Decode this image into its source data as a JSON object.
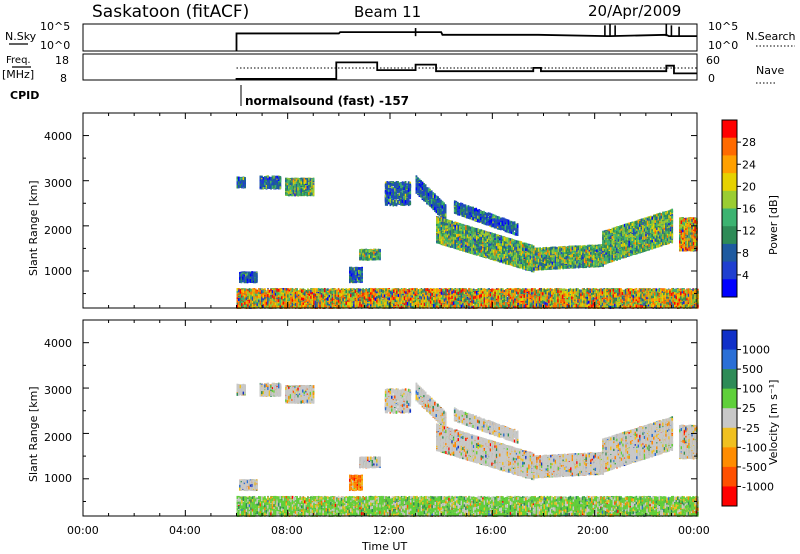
{
  "header": {
    "station": "Saskatoon (fitACF)",
    "beam": "Beam 11",
    "date": "20/Apr/2009"
  },
  "top_panels": {
    "nsky_label": "N.Sky",
    "nsky_ticks": [
      "10^5",
      "10^0"
    ],
    "nsearch_label": "N.Search",
    "nsearch_ticks": [
      "10^5",
      "10^0"
    ],
    "freq_label_1": "Freq.",
    "freq_label_2": "[MHz]",
    "freq_ticks": [
      "18",
      "8"
    ],
    "nave_label": "Nave",
    "nave_ticks": [
      "60",
      "0"
    ],
    "cpid_label": "CPID",
    "cpid_text": "normalsound (fast) -157"
  },
  "x_axis": {
    "tick_labels": [
      "00:00",
      "04:00",
      "08:00",
      "12:00",
      "16:00",
      "20:00",
      "00:00"
    ],
    "title": "Time UT"
  },
  "power_panel": {
    "ylabel": "Slant Range [km]",
    "yticks": [
      "4000",
      "3000",
      "2000",
      "1000"
    ],
    "colorbar_title": "Power [dB]",
    "colorbar_labels": [
      "28",
      "24",
      "20",
      "16",
      "12",
      "8",
      "4"
    ],
    "colors": [
      "#ff0000",
      "#ff6a00",
      "#ffa000",
      "#e6d200",
      "#9acd32",
      "#3cb371",
      "#2e8b57",
      "#1e5aa0",
      "#1f3fd0",
      "#0000ff"
    ]
  },
  "velocity_panel": {
    "ylabel": "Slant Range [km]",
    "yticks": [
      "4000",
      "3000",
      "2000",
      "1000"
    ],
    "colorbar_title": "Velocity [m s⁻¹]",
    "colorbar_labels": [
      "1000",
      "500",
      "100",
      "25",
      "-25",
      "-100",
      "-500",
      "-1000"
    ],
    "colors": [
      "#1030c8",
      "#2a6fd6",
      "#2e8b57",
      "#5fd03a",
      "#c8c8c8",
      "#f0c020",
      "#ff8c00",
      "#ff5000",
      "#ff0000"
    ]
  },
  "chart_data": [
    {
      "type": "line",
      "name": "N.Sky / N.Search",
      "x_range_hours": [
        0,
        24
      ],
      "data_start_hour": 6.0,
      "x": [
        6.0,
        10.0,
        10.05,
        14.0,
        14.05,
        17.8,
        20.5,
        20.6,
        22.8,
        22.9,
        24.0
      ],
      "y_level": [
        0.35,
        0.35,
        0.3,
        0.3,
        0.4,
        0.4,
        0.45,
        0.45,
        0.4,
        0.45,
        0.45
      ]
    },
    {
      "type": "line",
      "name": "Freq",
      "x_range_hours": [
        0,
        24
      ],
      "ylim_mhz": [
        8,
        18
      ],
      "x": [
        6.0,
        9.9,
        9.9,
        11.5,
        11.5,
        13.0,
        13.0,
        13.8,
        13.8,
        17.6,
        17.6,
        17.9,
        17.9,
        22.8,
        22.8,
        23.1,
        23.1,
        24.0
      ],
      "y": [
        8.5,
        8.5,
        16.0,
        16.0,
        12.5,
        12.5,
        15.0,
        15.0,
        12.0,
        12.0,
        13.5,
        13.5,
        12.0,
        12.0,
        14.5,
        14.5,
        11.0,
        11.0
      ]
    },
    {
      "type": "heatmap",
      "name": "Power",
      "x_range_hours": [
        0,
        24
      ],
      "y_range_km": [
        180,
        4500
      ],
      "clim_db": [
        0,
        30
      ]
    },
    {
      "type": "heatmap",
      "name": "Velocity",
      "x_range_hours": [
        0,
        24
      ],
      "y_range_km": [
        180,
        4500
      ],
      "clim_ms": [
        -1000,
        1000
      ]
    }
  ]
}
